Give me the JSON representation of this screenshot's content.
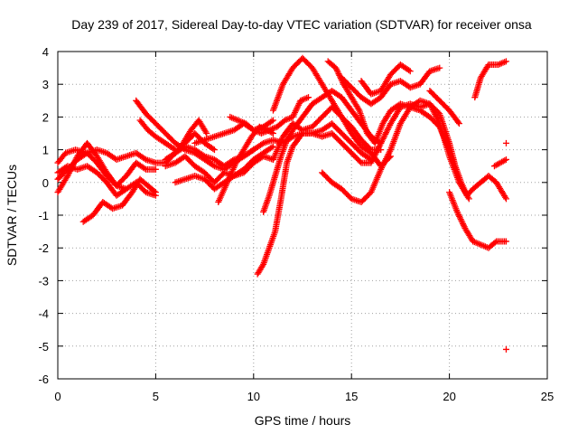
{
  "chart_data": {
    "type": "scatter",
    "title": "Day 239 of 2017, Sidereal Day-to-day VTEC variation (SDTVAR) for receiver onsa",
    "xlabel": "GPS time / hours",
    "ylabel": "SDTVAR / TECUs",
    "xlim": [
      0,
      25
    ],
    "ylim": [
      -6,
      4
    ],
    "xticks": [
      0,
      5,
      10,
      15,
      20,
      25
    ],
    "yticks": [
      -6,
      -5,
      -4,
      -3,
      -2,
      -1,
      0,
      1,
      2,
      3,
      4
    ],
    "grid": true,
    "marker": "+",
    "color": "#ff0000",
    "series": [
      {
        "points": [
          [
            0,
            0.6
          ],
          [
            0.4,
            0.9
          ],
          [
            0.9,
            1.0
          ],
          [
            1.5,
            0.9
          ],
          [
            2.0,
            1.0
          ],
          [
            2.5,
            0.9
          ],
          [
            3.0,
            0.7
          ],
          [
            3.5,
            0.8
          ],
          [
            4.0,
            0.9
          ],
          [
            4.5,
            0.7
          ],
          [
            5.0,
            0.6
          ],
          [
            5.5,
            0.6
          ],
          [
            6.0,
            0.9
          ],
          [
            6.5,
            1.1
          ],
          [
            7.0,
            1.0
          ],
          [
            7.5,
            0.8
          ],
          [
            8.0,
            0.7
          ],
          [
            8.5,
            0.5
          ],
          [
            9.0,
            0.7
          ],
          [
            9.5,
            0.8
          ],
          [
            10.0,
            1.0
          ],
          [
            10.5,
            1.2
          ],
          [
            11.0,
            1.3
          ],
          [
            11.5,
            1.2
          ],
          [
            12.0,
            1.4
          ],
          [
            12.5,
            1.5
          ],
          [
            13.0,
            1.5
          ],
          [
            13.5,
            1.4
          ],
          [
            14.0,
            1.5
          ],
          [
            14.5,
            1.2
          ],
          [
            15.0,
            0.9
          ],
          [
            15.5,
            0.6
          ],
          [
            16.0,
            0.6
          ],
          [
            16.5,
            1.2
          ],
          [
            17.0,
            1.8
          ],
          [
            17.5,
            2.3
          ],
          [
            18.0,
            2.4
          ],
          [
            18.5,
            2.3
          ],
          [
            19.0,
            2.4
          ],
          [
            19.5,
            2.1
          ],
          [
            20.0,
            1.2
          ],
          [
            20.3,
            0.5
          ],
          [
            20.6,
            0.0
          ],
          [
            20.9,
            -0.4
          ],
          [
            21.2,
            -0.2
          ],
          [
            21.6,
            0.0
          ],
          [
            22.0,
            0.2
          ],
          [
            22.4,
            0.0
          ],
          [
            22.9,
            -0.5
          ]
        ]
      },
      {
        "points": [
          [
            0,
            0.3
          ],
          [
            0.5,
            0.5
          ],
          [
            1.0,
            0.4
          ],
          [
            1.5,
            0.5
          ],
          [
            2.0,
            0.3
          ],
          [
            2.5,
            0.0
          ],
          [
            3.0,
            -0.4
          ],
          [
            3.5,
            -0.2
          ],
          [
            4.0,
            0.0
          ],
          [
            4.5,
            -0.3
          ],
          [
            5.0,
            -0.4
          ]
        ]
      },
      {
        "points": [
          [
            0,
            -0.3
          ],
          [
            0.5,
            0.2
          ],
          [
            1.0,
            0.8
          ],
          [
            1.5,
            1.2
          ],
          [
            2.0,
            0.8
          ],
          [
            2.5,
            0.3
          ],
          [
            3.0,
            -0.1
          ],
          [
            3.5,
            -0.2
          ]
        ]
      },
      {
        "points": [
          [
            0,
            0.1
          ],
          [
            0.5,
            0.4
          ],
          [
            1.0,
            0.7
          ],
          [
            1.5,
            0.9
          ],
          [
            2.0,
            0.6
          ],
          [
            2.5,
            0.2
          ],
          [
            3.0,
            -0.1
          ],
          [
            3.5,
            0.2
          ],
          [
            4.0,
            0.6
          ],
          [
            4.5,
            0.4
          ],
          [
            5.0,
            0.4
          ]
        ]
      },
      {
        "points": [
          [
            1.3,
            -1.2
          ],
          [
            1.8,
            -1.0
          ],
          [
            2.3,
            -0.6
          ],
          [
            2.8,
            -0.8
          ],
          [
            3.3,
            -0.7
          ],
          [
            3.8,
            -0.3
          ],
          [
            4.2,
            0.1
          ],
          [
            4.6,
            -0.1
          ],
          [
            5.0,
            -0.3
          ]
        ]
      },
      {
        "points": [
          [
            4.0,
            2.5
          ],
          [
            4.5,
            2.1
          ],
          [
            5.0,
            1.8
          ],
          [
            5.5,
            1.5
          ],
          [
            6.0,
            1.2
          ],
          [
            6.5,
            1.0
          ],
          [
            7.0,
            0.9
          ],
          [
            7.5,
            0.7
          ],
          [
            8.0,
            0.5
          ],
          [
            8.5,
            0.4
          ],
          [
            9.0,
            0.6
          ],
          [
            9.5,
            0.8
          ],
          [
            10.0,
            1.0
          ]
        ]
      },
      {
        "points": [
          [
            4.2,
            1.9
          ],
          [
            4.6,
            1.6
          ],
          [
            5.0,
            1.4
          ],
          [
            5.5,
            1.2
          ],
          [
            6.0,
            1.0
          ]
        ]
      },
      {
        "points": [
          [
            5.5,
            0.5
          ],
          [
            6.0,
            0.6
          ],
          [
            6.5,
            0.8
          ],
          [
            7.0,
            0.5
          ],
          [
            7.5,
            0.3
          ],
          [
            8.0,
            0.0
          ],
          [
            8.5,
            0.3
          ],
          [
            9.0,
            0.2
          ],
          [
            9.5,
            0.3
          ],
          [
            10.0,
            0.6
          ],
          [
            10.5,
            0.8
          ],
          [
            11.0,
            0.7
          ]
        ]
      },
      {
        "points": [
          [
            5.5,
            0.7
          ],
          [
            6.0,
            0.9
          ],
          [
            6.5,
            1.2
          ],
          [
            7.0,
            1.5
          ],
          [
            7.5,
            1.2
          ],
          [
            8.0,
            1.0
          ]
        ]
      },
      {
        "points": [
          [
            5.8,
            0.8
          ],
          [
            6.3,
            1.1
          ],
          [
            6.8,
            1.6
          ],
          [
            7.2,
            1.9
          ],
          [
            7.6,
            1.5
          ]
        ]
      },
      {
        "points": [
          [
            6.0,
            0.0
          ],
          [
            6.5,
            0.1
          ],
          [
            7.0,
            0.2
          ],
          [
            7.5,
            0.1
          ],
          [
            8.0,
            -0.2
          ],
          [
            8.5,
            0.0
          ],
          [
            9.0,
            0.2
          ],
          [
            9.5,
            0.4
          ],
          [
            10.0,
            0.7
          ],
          [
            10.5,
            0.9
          ],
          [
            11.0,
            1.1
          ]
        ]
      },
      {
        "points": [
          [
            7.0,
            1.2
          ],
          [
            7.5,
            1.3
          ],
          [
            8.0,
            1.4
          ],
          [
            8.5,
            1.5
          ],
          [
            9.0,
            1.6
          ],
          [
            9.5,
            1.8
          ],
          [
            10.0,
            1.6
          ],
          [
            10.5,
            1.7
          ],
          [
            11.0,
            1.9
          ]
        ]
      },
      {
        "points": [
          [
            8.2,
            -0.6
          ],
          [
            8.5,
            -0.2
          ],
          [
            8.8,
            0.2
          ],
          [
            9.1,
            0.6
          ],
          [
            9.5,
            1.0
          ],
          [
            9.9,
            1.4
          ],
          [
            10.3,
            1.7
          ],
          [
            10.7,
            1.6
          ],
          [
            11.0,
            1.5
          ]
        ]
      },
      {
        "points": [
          [
            8.8,
            2.0
          ],
          [
            9.2,
            1.9
          ],
          [
            9.6,
            1.8
          ],
          [
            10.0,
            1.6
          ],
          [
            10.4,
            1.5
          ],
          [
            10.8,
            1.6
          ],
          [
            11.2,
            1.7
          ],
          [
            11.6,
            1.9
          ],
          [
            12.0,
            2.0
          ],
          [
            12.4,
            2.5
          ],
          [
            12.8,
            2.6
          ]
        ]
      },
      {
        "points": [
          [
            10.2,
            -2.8
          ],
          [
            10.5,
            -2.5
          ],
          [
            10.8,
            -2.0
          ],
          [
            11.1,
            -1.5
          ],
          [
            11.4,
            -0.5
          ],
          [
            11.7,
            0.6
          ],
          [
            12.0,
            1.1
          ],
          [
            12.5,
            1.5
          ],
          [
            13.0,
            1.5
          ],
          [
            13.5,
            1.6
          ],
          [
            14.0,
            1.8
          ],
          [
            14.5,
            1.5
          ],
          [
            15.0,
            1.2
          ],
          [
            15.5,
            0.9
          ],
          [
            16.0,
            0.7
          ]
        ]
      },
      {
        "points": [
          [
            10.5,
            -0.9
          ],
          [
            10.8,
            -0.4
          ],
          [
            11.1,
            0.2
          ],
          [
            11.4,
            0.8
          ],
          [
            11.7,
            1.3
          ],
          [
            12.0,
            1.6
          ],
          [
            12.5,
            2.0
          ],
          [
            13.0,
            2.4
          ],
          [
            13.5,
            2.6
          ],
          [
            14.0,
            2.8
          ],
          [
            14.5,
            2.6
          ],
          [
            15.0,
            2.2
          ],
          [
            15.5,
            1.8
          ],
          [
            16.0,
            1.4
          ],
          [
            16.5,
            1.2
          ]
        ]
      },
      {
        "points": [
          [
            11.0,
            0.7
          ],
          [
            11.5,
            1.4
          ],
          [
            12.0,
            1.8
          ],
          [
            12.5,
            1.6
          ],
          [
            13.0,
            1.7
          ],
          [
            13.5,
            2.0
          ],
          [
            14.0,
            2.3
          ],
          [
            14.5,
            2.0
          ],
          [
            15.0,
            1.7
          ],
          [
            15.5,
            1.3
          ],
          [
            16.0,
            1.0
          ],
          [
            16.5,
            1.0
          ]
        ]
      },
      {
        "points": [
          [
            11.0,
            2.2
          ],
          [
            11.5,
            3.0
          ],
          [
            12.0,
            3.5
          ],
          [
            12.5,
            3.8
          ],
          [
            13.0,
            3.5
          ],
          [
            13.5,
            3.0
          ],
          [
            14.0,
            2.5
          ],
          [
            14.5,
            2.0
          ],
          [
            15.0,
            1.5
          ],
          [
            15.5,
            1.1
          ],
          [
            16.0,
            0.9
          ],
          [
            16.5,
            0.5
          ],
          [
            17.0,
            0.8
          ]
        ]
      },
      {
        "points": [
          [
            13.5,
            0.3
          ],
          [
            14.0,
            0.0
          ],
          [
            14.5,
            -0.2
          ],
          [
            15.0,
            -0.5
          ],
          [
            15.5,
            -0.6
          ],
          [
            16.0,
            -0.3
          ],
          [
            16.5,
            0.4
          ],
          [
            17.0,
            1.0
          ],
          [
            17.5,
            1.8
          ],
          [
            18.0,
            2.3
          ],
          [
            18.5,
            2.5
          ],
          [
            19.0,
            2.4
          ],
          [
            19.5,
            1.8
          ],
          [
            20.0,
            0.8
          ],
          [
            20.5,
            0.0
          ],
          [
            21.0,
            -0.5
          ]
        ]
      },
      {
        "points": [
          [
            13.8,
            3.7
          ],
          [
            14.2,
            3.5
          ],
          [
            14.6,
            3.0
          ],
          [
            15.0,
            2.6
          ],
          [
            15.4,
            2.2
          ],
          [
            15.8,
            1.5
          ],
          [
            16.2,
            1.2
          ],
          [
            16.6,
            1.8
          ],
          [
            17.0,
            2.2
          ],
          [
            17.5,
            2.4
          ],
          [
            18.0,
            2.3
          ],
          [
            18.5,
            2.2
          ],
          [
            19.0,
            2.0
          ],
          [
            19.5,
            1.7
          ],
          [
            20.0,
            1.0
          ],
          [
            20.3,
            0.4
          ]
        ]
      },
      {
        "points": [
          [
            14.5,
            3.2
          ],
          [
            15.0,
            2.9
          ],
          [
            15.5,
            2.6
          ],
          [
            16.0,
            2.4
          ],
          [
            16.5,
            2.6
          ],
          [
            17.0,
            3.0
          ],
          [
            17.5,
            3.1
          ],
          [
            18.0,
            2.9
          ],
          [
            18.5,
            3.0
          ],
          [
            19.0,
            3.4
          ],
          [
            19.5,
            3.5
          ]
        ]
      },
      {
        "points": [
          [
            15.5,
            3.1
          ],
          [
            16.0,
            2.7
          ],
          [
            16.5,
            2.8
          ],
          [
            17.0,
            3.3
          ],
          [
            17.5,
            3.6
          ],
          [
            18.0,
            3.4
          ]
        ]
      },
      {
        "points": [
          [
            19.0,
            2.8
          ],
          [
            19.5,
            2.5
          ],
          [
            20.0,
            2.2
          ],
          [
            20.5,
            1.8
          ]
        ]
      },
      {
        "points": [
          [
            20.0,
            -0.3
          ],
          [
            20.4,
            -0.9
          ],
          [
            20.8,
            -1.4
          ],
          [
            21.2,
            -1.8
          ],
          [
            21.6,
            -1.9
          ],
          [
            22.0,
            -2.0
          ],
          [
            22.4,
            -1.8
          ],
          [
            22.9,
            -1.8
          ]
        ]
      },
      {
        "points": [
          [
            21.3,
            2.6
          ],
          [
            21.6,
            3.2
          ],
          [
            22.0,
            3.6
          ],
          [
            22.5,
            3.6
          ],
          [
            22.9,
            3.7
          ]
        ]
      },
      {
        "points": [
          [
            22.3,
            0.5
          ],
          [
            22.6,
            0.6
          ],
          [
            22.9,
            0.7
          ]
        ]
      },
      {
        "points": [
          [
            22.9,
            1.2
          ]
        ]
      },
      {
        "points": [
          [
            22.9,
            -5.1
          ]
        ]
      }
    ]
  }
}
